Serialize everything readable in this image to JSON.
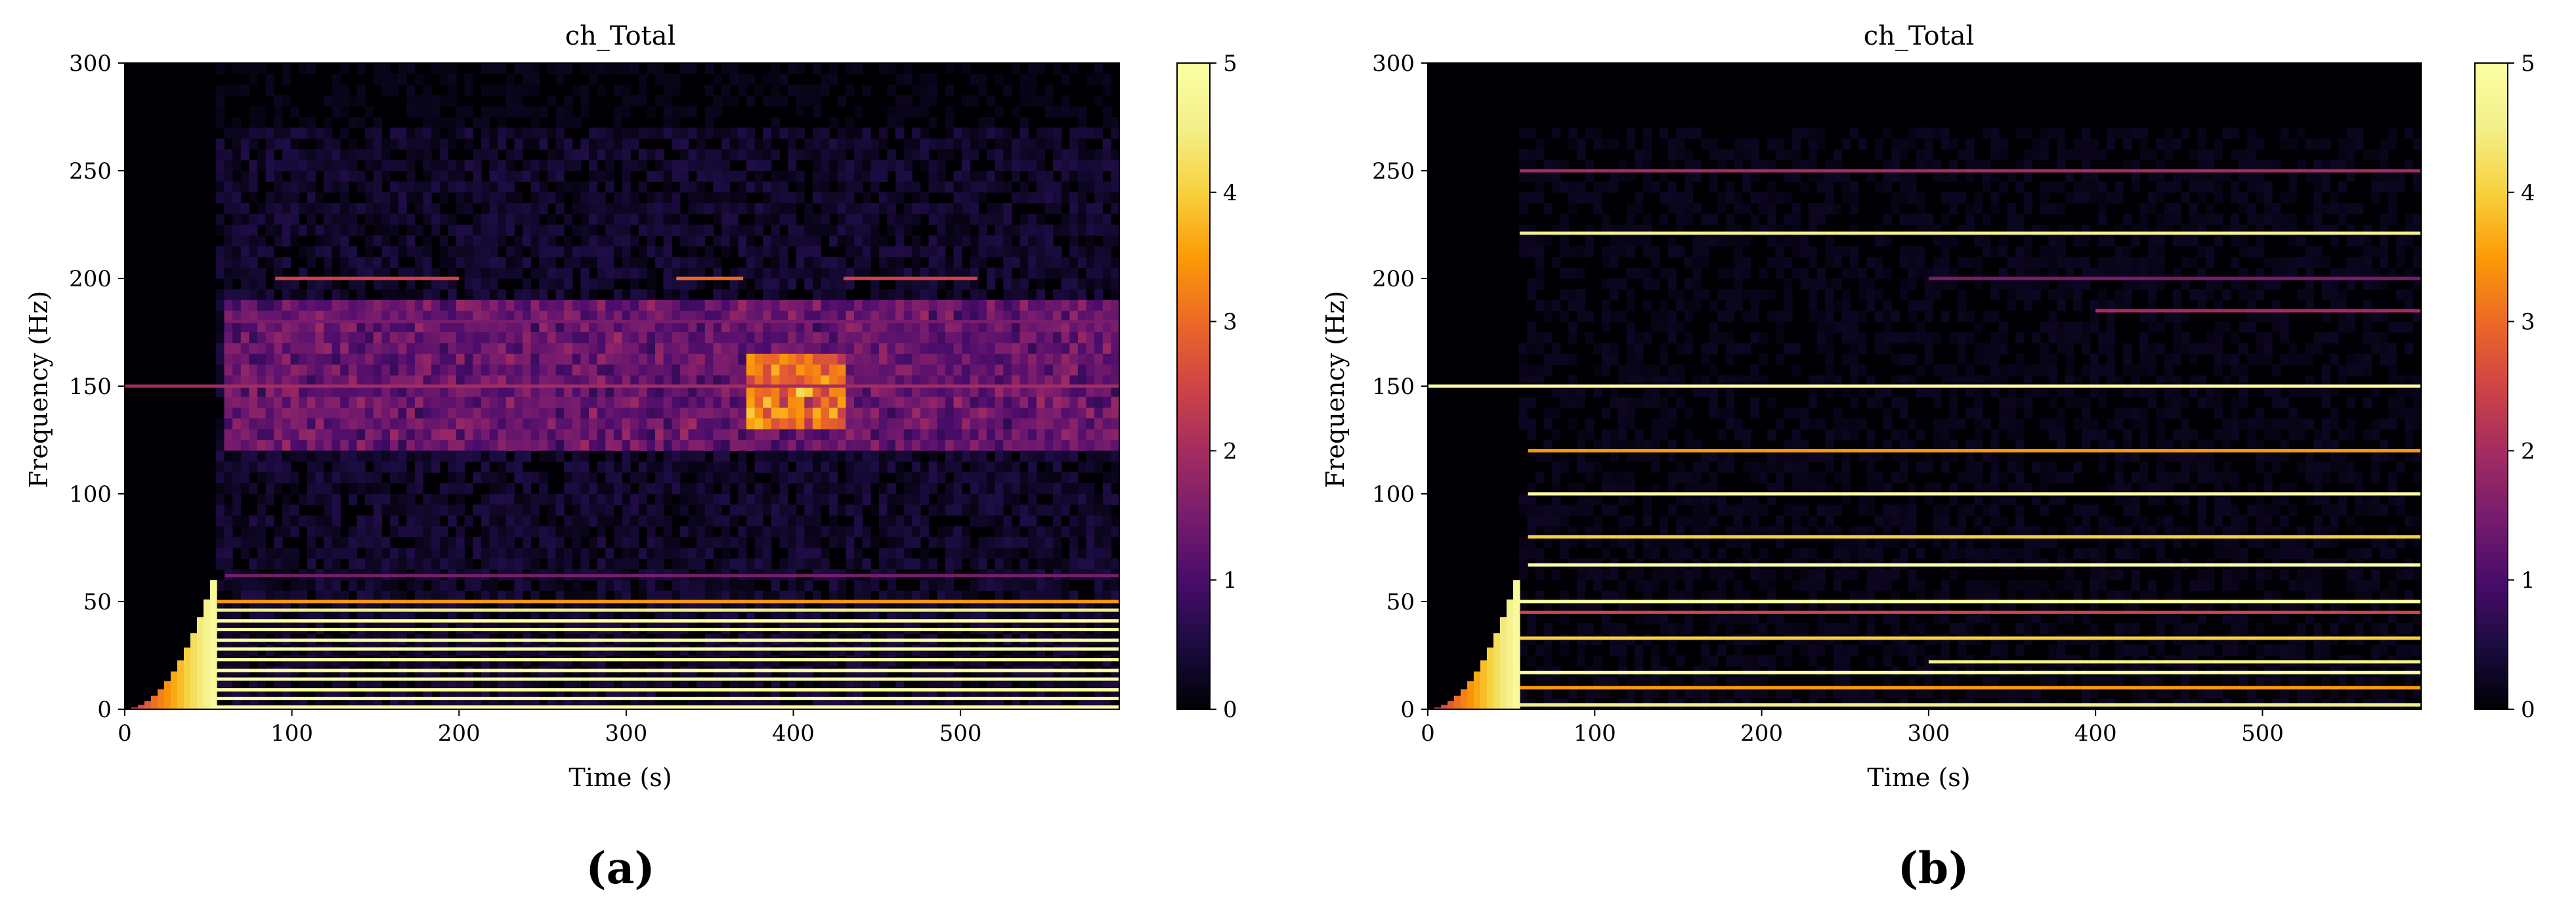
{
  "colorbar": {
    "min": 0,
    "max": 5,
    "ticks": [
      "0",
      "1",
      "2",
      "3",
      "4",
      "5"
    ]
  },
  "colors": {
    "black": "#000004",
    "purple": "#57106e",
    "magenta": "#bc3754",
    "orange": "#f98e09",
    "yellow": "#fcffa4"
  },
  "chart_data": [
    {
      "type": "heatmap",
      "panel_label": "(a)",
      "title": "ch_Total",
      "xlabel": "Time (s)",
      "ylabel": "Frequency (Hz)",
      "xlim": [
        0,
        595
      ],
      "ylim": [
        0,
        300
      ],
      "xticks": [
        "0",
        "100",
        "200",
        "300",
        "400",
        "500"
      ],
      "yticks": [
        "0",
        "50",
        "100",
        "150",
        "200",
        "250",
        "300"
      ],
      "colorscale": "inferno",
      "clim": [
        0,
        5
      ],
      "grid": false,
      "onset": {
        "time": 55,
        "peak_frequency_hz": 60,
        "intensity": 5
      },
      "bands": [
        {
          "frequency_hz": 1,
          "t_start": 55,
          "t_end": 595,
          "intensity": 5
        },
        {
          "frequency_hz": 5,
          "t_start": 55,
          "t_end": 595,
          "intensity": 5
        },
        {
          "frequency_hz": 9,
          "t_start": 55,
          "t_end": 595,
          "intensity": 5
        },
        {
          "frequency_hz": 14,
          "t_start": 55,
          "t_end": 595,
          "intensity": 5
        },
        {
          "frequency_hz": 18,
          "t_start": 55,
          "t_end": 595,
          "intensity": 5
        },
        {
          "frequency_hz": 23,
          "t_start": 55,
          "t_end": 595,
          "intensity": 5
        },
        {
          "frequency_hz": 28,
          "t_start": 55,
          "t_end": 595,
          "intensity": 5
        },
        {
          "frequency_hz": 32,
          "t_start": 55,
          "t_end": 595,
          "intensity": 5
        },
        {
          "frequency_hz": 37,
          "t_start": 55,
          "t_end": 595,
          "intensity": 5
        },
        {
          "frequency_hz": 41,
          "t_start": 55,
          "t_end": 595,
          "intensity": 5
        },
        {
          "frequency_hz": 46,
          "t_start": 55,
          "t_end": 595,
          "intensity": 4.5
        },
        {
          "frequency_hz": 50,
          "t_start": 55,
          "t_end": 595,
          "intensity": 3.5
        },
        {
          "frequency_hz": 62,
          "t_start": 60,
          "t_end": 595,
          "intensity": 1.5
        },
        {
          "frequency_hz": 150,
          "t_start": 0,
          "t_end": 595,
          "intensity": 2.0
        },
        {
          "frequency_hz": 180,
          "t_start": 60,
          "t_end": 595,
          "intensity": 1.5
        },
        {
          "frequency_hz": 200,
          "t_start": 90,
          "t_end": 200,
          "intensity": 2.5
        },
        {
          "frequency_hz": 200,
          "t_start": 330,
          "t_end": 370,
          "intensity": 3.0
        },
        {
          "frequency_hz": 200,
          "t_start": 430,
          "t_end": 510,
          "intensity": 2.5
        }
      ],
      "diffuse_regions": [
        {
          "t_start": 60,
          "t_end": 595,
          "f_low": 120,
          "f_high": 190,
          "intensity": 1.3
        },
        {
          "t_start": 370,
          "t_end": 430,
          "f_low": 130,
          "f_high": 165,
          "intensity": 2.2
        }
      ]
    },
    {
      "type": "heatmap",
      "panel_label": "(b)",
      "title": "ch_Total",
      "xlabel": "Time (s)",
      "ylabel": "Frequency (Hz)",
      "xlim": [
        0,
        595
      ],
      "ylim": [
        0,
        300
      ],
      "xticks": [
        "0",
        "100",
        "200",
        "300",
        "400",
        "500"
      ],
      "yticks": [
        "0",
        "50",
        "100",
        "150",
        "200",
        "250",
        "300"
      ],
      "colorscale": "inferno",
      "clim": [
        0,
        5
      ],
      "grid": false,
      "onset": {
        "time": 55,
        "peak_frequency_hz": 60,
        "intensity": 5
      },
      "bands": [
        {
          "frequency_hz": 2,
          "t_start": 55,
          "t_end": 595,
          "intensity": 4.5
        },
        {
          "frequency_hz": 10,
          "t_start": 55,
          "t_end": 595,
          "intensity": 3.5
        },
        {
          "frequency_hz": 17,
          "t_start": 55,
          "t_end": 595,
          "intensity": 5
        },
        {
          "frequency_hz": 22,
          "t_start": 300,
          "t_end": 595,
          "intensity": 4.5
        },
        {
          "frequency_hz": 33,
          "t_start": 55,
          "t_end": 595,
          "intensity": 4.0
        },
        {
          "frequency_hz": 45,
          "t_start": 55,
          "t_end": 595,
          "intensity": 2.5
        },
        {
          "frequency_hz": 50,
          "t_start": 55,
          "t_end": 595,
          "intensity": 5
        },
        {
          "frequency_hz": 67,
          "t_start": 60,
          "t_end": 595,
          "intensity": 5
        },
        {
          "frequency_hz": 80,
          "t_start": 60,
          "t_end": 595,
          "intensity": 4.0
        },
        {
          "frequency_hz": 100,
          "t_start": 60,
          "t_end": 595,
          "intensity": 5
        },
        {
          "frequency_hz": 120,
          "t_start": 60,
          "t_end": 595,
          "intensity": 3.5
        },
        {
          "frequency_hz": 150,
          "t_start": 0,
          "t_end": 595,
          "intensity": 5
        },
        {
          "frequency_hz": 185,
          "t_start": 400,
          "t_end": 595,
          "intensity": 2.0
        },
        {
          "frequency_hz": 200,
          "t_start": 300,
          "t_end": 595,
          "intensity": 1.5
        },
        {
          "frequency_hz": 221,
          "t_start": 55,
          "t_end": 595,
          "intensity": 4.5
        },
        {
          "frequency_hz": 250,
          "t_start": 55,
          "t_end": 595,
          "intensity": 2.0
        }
      ],
      "diffuse_regions": []
    }
  ]
}
